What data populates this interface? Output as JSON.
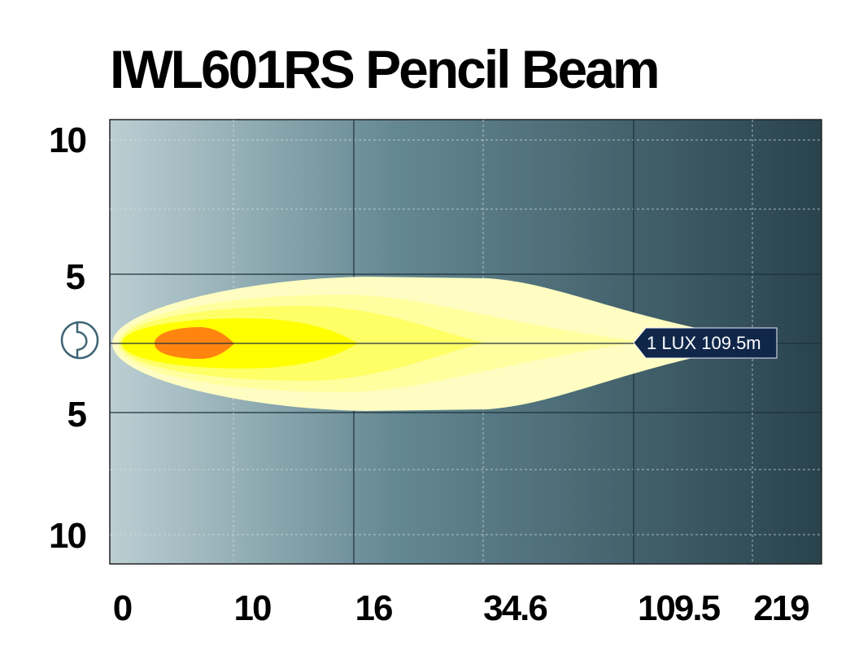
{
  "header": {
    "title": "IWL601RS Pencil Beam"
  },
  "y_labels": [
    "10",
    "5",
    "5",
    "10"
  ],
  "x_labels": [
    "0",
    "10",
    "16",
    "34.6",
    "109.5",
    "219"
  ],
  "annotation": "1 LUX 109.5m"
}
